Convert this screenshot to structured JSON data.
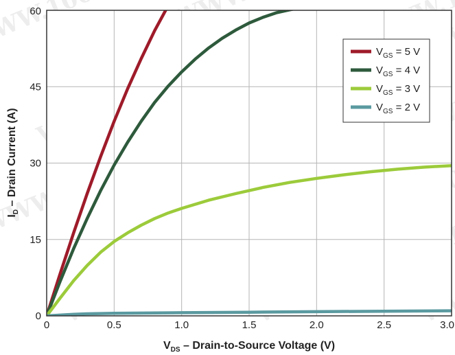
{
  "chart_data": {
    "type": "line",
    "xlabel": {
      "main": "V",
      "sub": "DS",
      "rest": " – Drain-to-Source Voltage (V)"
    },
    "ylabel": {
      "main": "I",
      "sub": "D",
      "rest": " – Drain Current (A)"
    },
    "xlim": [
      0,
      3.0
    ],
    "ylim": [
      0,
      60
    ],
    "xticks": [
      "0",
      "0.5",
      "1.0",
      "1.5",
      "2.0",
      "2.5",
      "3.0"
    ],
    "yticks": [
      "0",
      "15",
      "30",
      "45",
      "60"
    ],
    "grid": true,
    "legend_position": "top-right",
    "watermark": "WWW.100Y.COM.TW",
    "series": [
      {
        "name": {
          "main": "V",
          "sub": "GS",
          "rest": " = 5 V"
        },
        "color": "#9e1b2a",
        "x": [
          0,
          0.1,
          0.2,
          0.3,
          0.4,
          0.5,
          0.6,
          0.7,
          0.8,
          0.9,
          0.92
        ],
        "y": [
          0,
          8.3,
          16.3,
          24.0,
          31.3,
          38.2,
          44.6,
          50.5,
          56.0,
          60.9,
          61.5
        ]
      },
      {
        "name": {
          "main": "V",
          "sub": "GS",
          "rest": " = 4 V"
        },
        "color": "#2e5a3c",
        "x": [
          0,
          0.1,
          0.2,
          0.3,
          0.4,
          0.5,
          0.6,
          0.7,
          0.8,
          0.9,
          1.0,
          1.1,
          1.2,
          1.3,
          1.4,
          1.5,
          1.6,
          1.7,
          1.8,
          1.9,
          2.0
        ],
        "y": [
          0,
          6.8,
          13.2,
          19.1,
          24.6,
          29.6,
          34.1,
          38.2,
          41.9,
          45.1,
          47.9,
          50.4,
          52.6,
          54.5,
          56.1,
          57.5,
          58.6,
          59.5,
          60.1,
          60.6,
          60.9
        ]
      },
      {
        "name": {
          "main": "V",
          "sub": "GS",
          "rest": " = 3 V"
        },
        "color": "#9ccb3b",
        "x": [
          0,
          0.1,
          0.2,
          0.3,
          0.4,
          0.5,
          0.6,
          0.7,
          0.8,
          0.9,
          1.0,
          1.2,
          1.4,
          1.6,
          1.8,
          2.0,
          2.2,
          2.4,
          2.6,
          2.8,
          3.0
        ],
        "y": [
          0,
          3.5,
          6.9,
          9.9,
          12.5,
          14.6,
          16.3,
          17.8,
          19.1,
          20.2,
          21.1,
          22.7,
          24.0,
          25.2,
          26.2,
          27.0,
          27.7,
          28.3,
          28.8,
          29.2,
          29.5
        ]
      },
      {
        "name": {
          "main": "V",
          "sub": "GS",
          "rest": " = 2 V"
        },
        "color": "#5a9aa0",
        "x": [
          0,
          0.1,
          0.2,
          0.3,
          0.5,
          0.8,
          1.0,
          1.5,
          2.0,
          2.5,
          3.0
        ],
        "y": [
          0,
          0.15,
          0.3,
          0.4,
          0.5,
          0.58,
          0.62,
          0.72,
          0.82,
          0.92,
          1.0
        ]
      }
    ]
  }
}
